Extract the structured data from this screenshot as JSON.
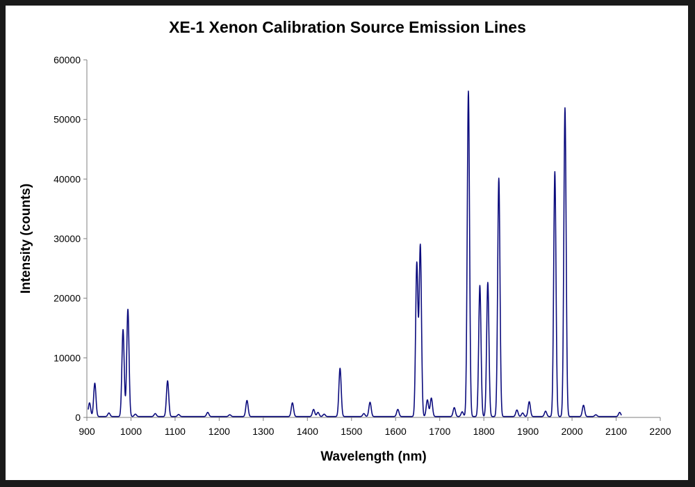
{
  "chart_data": {
    "type": "line",
    "title": "XE-1 Xenon Calibration Source Emission Lines",
    "xlabel": "Wavelength (nm)",
    "ylabel": "Intensity (counts)",
    "xlim": [
      900,
      2200
    ],
    "ylim": [
      0,
      60000
    ],
    "xticks": [
      "900",
      "1000",
      "1100",
      "1200",
      "1300",
      "1400",
      "1500",
      "1600",
      "1700",
      "1800",
      "1900",
      "2000",
      "2100",
      "2200"
    ],
    "yticks": [
      "0",
      "10000",
      "20000",
      "30000",
      "40000",
      "50000",
      "60000"
    ],
    "grid": false,
    "legend": "none",
    "line_color": "#0b0b7d",
    "baseline": 150,
    "peaks": [
      {
        "x": 906,
        "y": 2300
      },
      {
        "x": 918,
        "y": 5600
      },
      {
        "x": 950,
        "y": 600
      },
      {
        "x": 982,
        "y": 14600
      },
      {
        "x": 993,
        "y": 18000
      },
      {
        "x": 1010,
        "y": 400
      },
      {
        "x": 1055,
        "y": 500
      },
      {
        "x": 1083,
        "y": 6000
      },
      {
        "x": 1108,
        "y": 350
      },
      {
        "x": 1174,
        "y": 700
      },
      {
        "x": 1224,
        "y": 300
      },
      {
        "x": 1263,
        "y": 2700
      },
      {
        "x": 1366,
        "y": 2300
      },
      {
        "x": 1414,
        "y": 1200
      },
      {
        "x": 1424,
        "y": 700
      },
      {
        "x": 1438,
        "y": 400
      },
      {
        "x": 1474,
        "y": 8100
      },
      {
        "x": 1528,
        "y": 500
      },
      {
        "x": 1542,
        "y": 2400
      },
      {
        "x": 1605,
        "y": 1200
      },
      {
        "x": 1648,
        "y": 25700
      },
      {
        "x": 1656,
        "y": 28700
      },
      {
        "x": 1672,
        "y": 2800
      },
      {
        "x": 1681,
        "y": 3100
      },
      {
        "x": 1733,
        "y": 1500
      },
      {
        "x": 1751,
        "y": 800
      },
      {
        "x": 1765,
        "y": 54600
      },
      {
        "x": 1791,
        "y": 22000
      },
      {
        "x": 1809,
        "y": 22500
      },
      {
        "x": 1834,
        "y": 40000
      },
      {
        "x": 1875,
        "y": 1100
      },
      {
        "x": 1888,
        "y": 600
      },
      {
        "x": 1903,
        "y": 2500
      },
      {
        "x": 1940,
        "y": 900
      },
      {
        "x": 1961,
        "y": 41100
      },
      {
        "x": 1984,
        "y": 51800
      },
      {
        "x": 2026,
        "y": 1900
      },
      {
        "x": 2054,
        "y": 300
      },
      {
        "x": 2108,
        "y": 700
      }
    ]
  }
}
